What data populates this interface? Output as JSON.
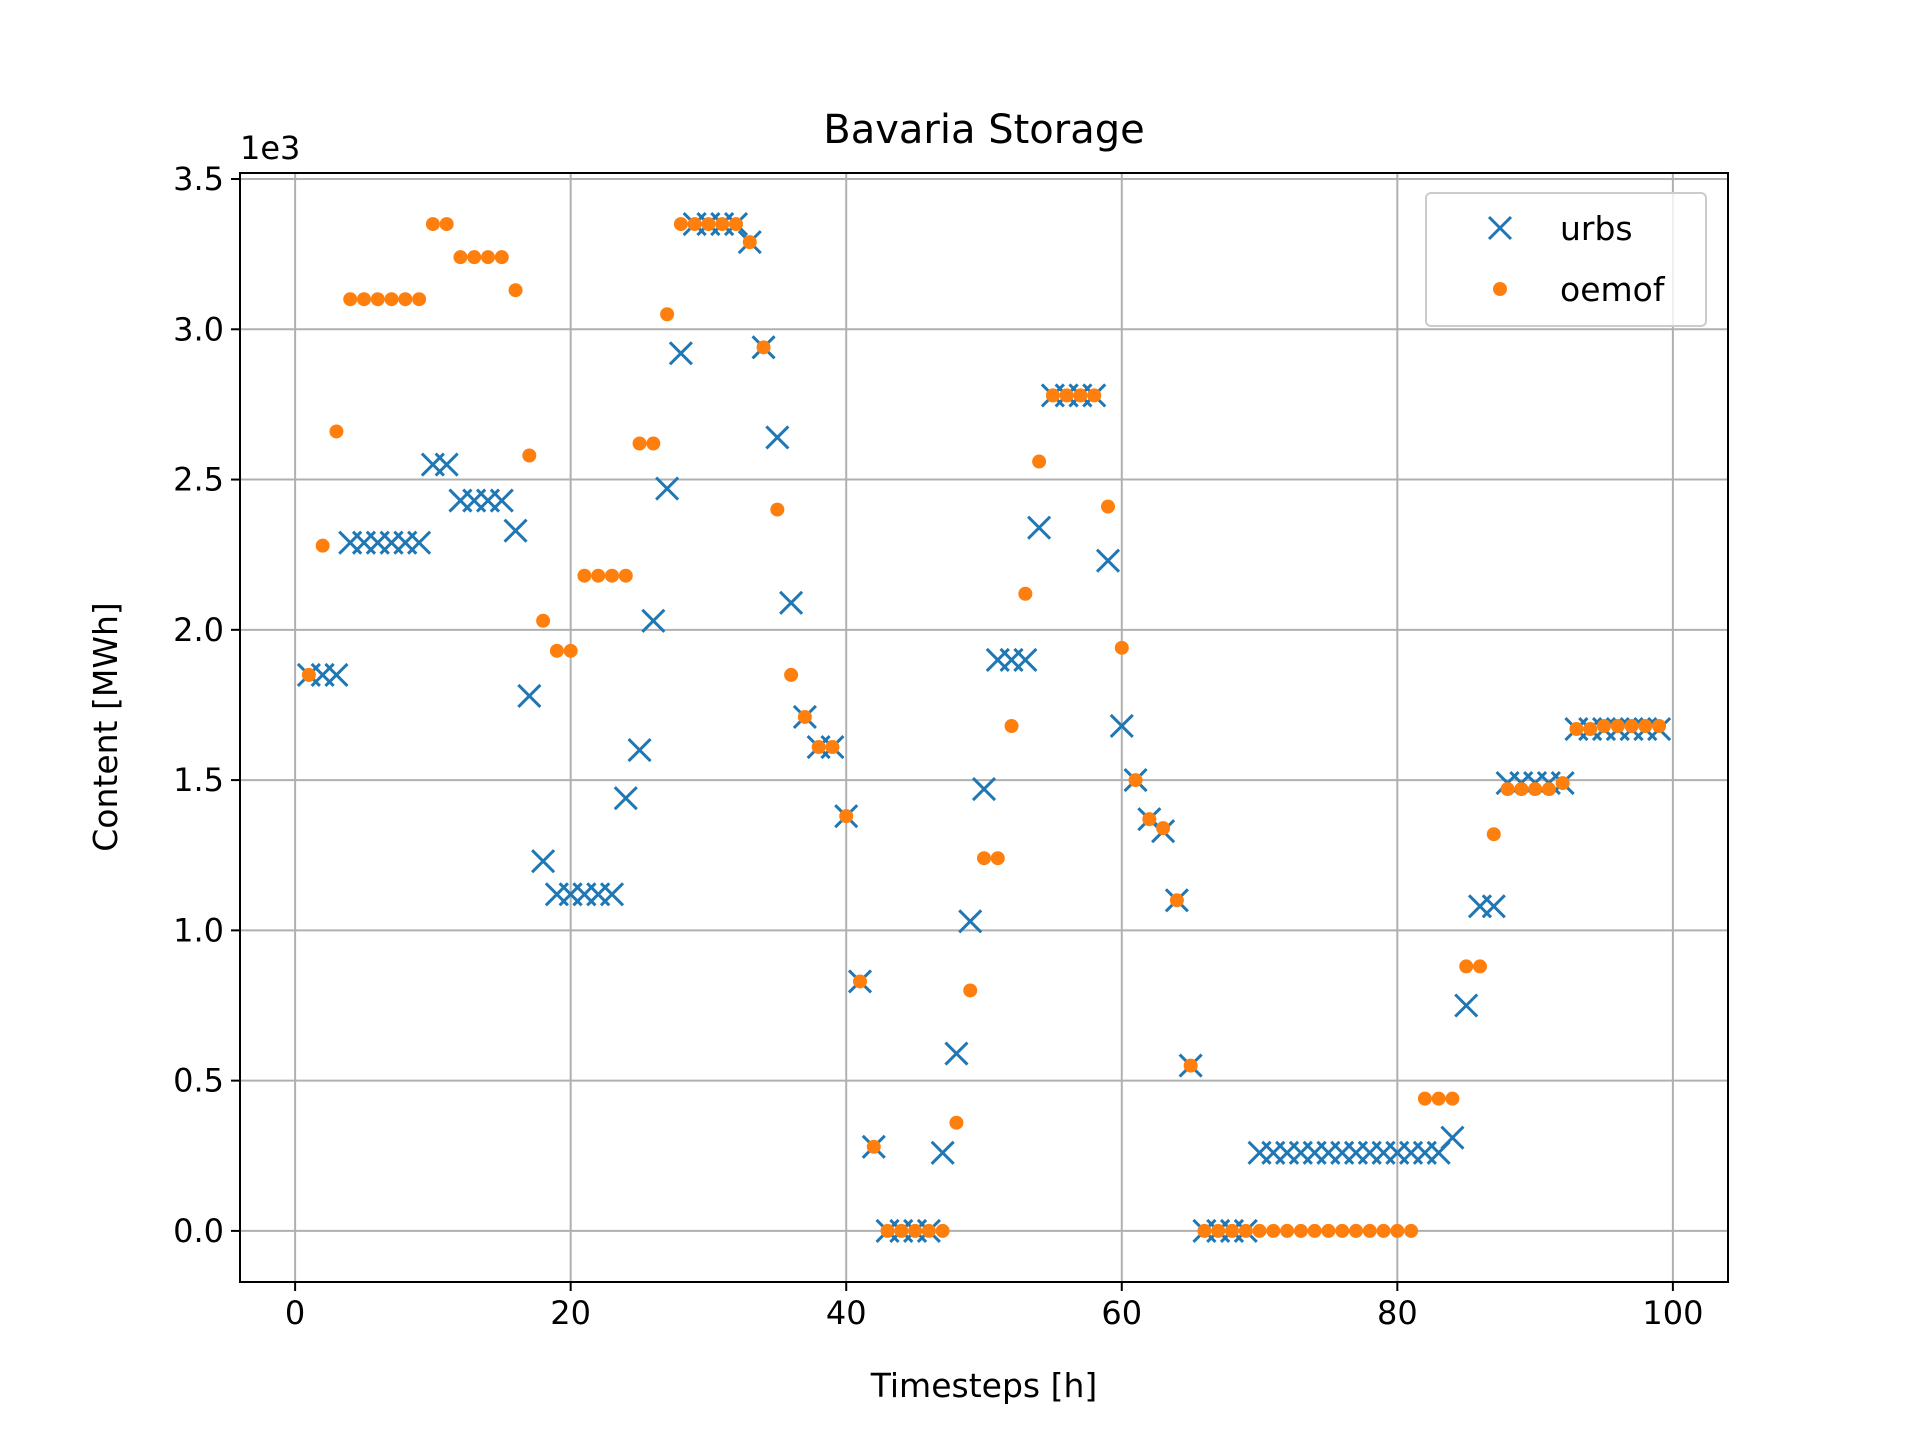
{
  "chart_data": {
    "type": "scatter",
    "title": "Bavaria Storage",
    "xlabel": "Timesteps [h]",
    "ylabel": "Content [MWh]",
    "y_offset_label": "1e3",
    "xlim": [
      -4,
      104
    ],
    "ylim": [
      -0.17,
      3.52
    ],
    "x_ticks": [
      0,
      20,
      40,
      60,
      80,
      100
    ],
    "x_tick_labels": [
      "0",
      "20",
      "40",
      "60",
      "80",
      "100"
    ],
    "y_ticks": [
      0.0,
      0.5,
      1.0,
      1.5,
      2.0,
      2.5,
      3.0,
      3.5
    ],
    "y_tick_labels": [
      "0.0",
      "0.5",
      "1.0",
      "1.5",
      "2.0",
      "2.5",
      "3.0",
      "3.5"
    ],
    "grid": true,
    "legend_position": "top-right",
    "x": [
      1,
      2,
      3,
      4,
      5,
      6,
      7,
      8,
      9,
      10,
      11,
      12,
      13,
      14,
      15,
      16,
      17,
      18,
      19,
      20,
      21,
      22,
      23,
      24,
      25,
      26,
      27,
      28,
      29,
      30,
      31,
      32,
      33,
      34,
      35,
      36,
      37,
      38,
      39,
      40,
      41,
      42,
      43,
      44,
      45,
      46,
      47,
      48,
      49,
      50,
      51,
      52,
      53,
      54,
      55,
      56,
      57,
      58,
      59,
      60,
      61,
      62,
      63,
      64,
      65,
      66,
      67,
      68,
      69,
      70,
      71,
      72,
      73,
      74,
      75,
      76,
      77,
      78,
      79,
      80,
      81,
      82,
      83,
      84,
      85,
      86,
      87,
      88,
      89,
      90,
      91,
      92,
      93,
      94,
      95,
      96,
      97,
      98,
      99
    ],
    "series": [
      {
        "name": "urbs",
        "marker": "x",
        "color": "#1f77b4",
        "values": [
          1.85,
          1.85,
          1.85,
          2.29,
          2.29,
          2.29,
          2.29,
          2.29,
          2.29,
          2.55,
          2.55,
          2.43,
          2.43,
          2.43,
          2.43,
          2.33,
          1.78,
          1.23,
          1.12,
          1.12,
          1.12,
          1.12,
          1.12,
          1.44,
          1.6,
          2.03,
          2.47,
          2.92,
          3.35,
          3.35,
          3.35,
          3.35,
          3.29,
          2.94,
          2.64,
          2.09,
          1.71,
          1.61,
          1.61,
          1.38,
          0.83,
          0.28,
          0.0,
          0.0,
          0.0,
          0.0,
          0.26,
          0.59,
          1.03,
          1.47,
          1.9,
          1.9,
          1.9,
          2.34,
          2.78,
          2.78,
          2.78,
          2.78,
          2.23,
          1.68,
          1.5,
          1.37,
          1.33,
          1.1,
          0.55,
          0.0,
          0.0,
          0.0,
          0.0,
          0.26,
          0.26,
          0.26,
          0.26,
          0.26,
          0.26,
          0.26,
          0.26,
          0.26,
          0.26,
          0.26,
          0.26,
          0.26,
          0.26,
          0.31,
          0.75,
          1.08,
          1.08,
          1.49,
          1.49,
          1.49,
          1.49,
          1.49,
          1.67,
          1.67,
          1.67,
          1.67,
          1.67,
          1.67,
          1.67
        ]
      },
      {
        "name": "oemof",
        "marker": "o",
        "color": "#ff7f0e",
        "values": [
          1.85,
          2.28,
          2.66,
          3.1,
          3.1,
          3.1,
          3.1,
          3.1,
          3.1,
          3.35,
          3.35,
          3.24,
          3.24,
          3.24,
          3.24,
          3.13,
          2.58,
          2.03,
          1.93,
          1.93,
          2.18,
          2.18,
          2.18,
          2.18,
          2.62,
          2.62,
          3.05,
          3.35,
          3.35,
          3.35,
          3.35,
          3.35,
          3.29,
          2.94,
          2.4,
          1.85,
          1.71,
          1.61,
          1.61,
          1.38,
          0.83,
          0.28,
          0.0,
          0.0,
          0.0,
          0.0,
          0.0,
          0.36,
          0.8,
          1.24,
          1.24,
          1.68,
          2.12,
          2.56,
          2.78,
          2.78,
          2.78,
          2.78,
          2.41,
          1.94,
          1.5,
          1.37,
          1.34,
          1.1,
          0.55,
          0.0,
          0.0,
          0.0,
          0.0,
          0.0,
          0.0,
          0.0,
          0.0,
          0.0,
          0.0,
          0.0,
          0.0,
          0.0,
          0.0,
          0.0,
          0.0,
          0.44,
          0.44,
          0.44,
          0.88,
          0.88,
          1.32,
          1.47,
          1.47,
          1.47,
          1.47,
          1.49,
          1.67,
          1.67,
          1.68,
          1.68,
          1.68,
          1.68,
          1.68
        ]
      }
    ]
  }
}
